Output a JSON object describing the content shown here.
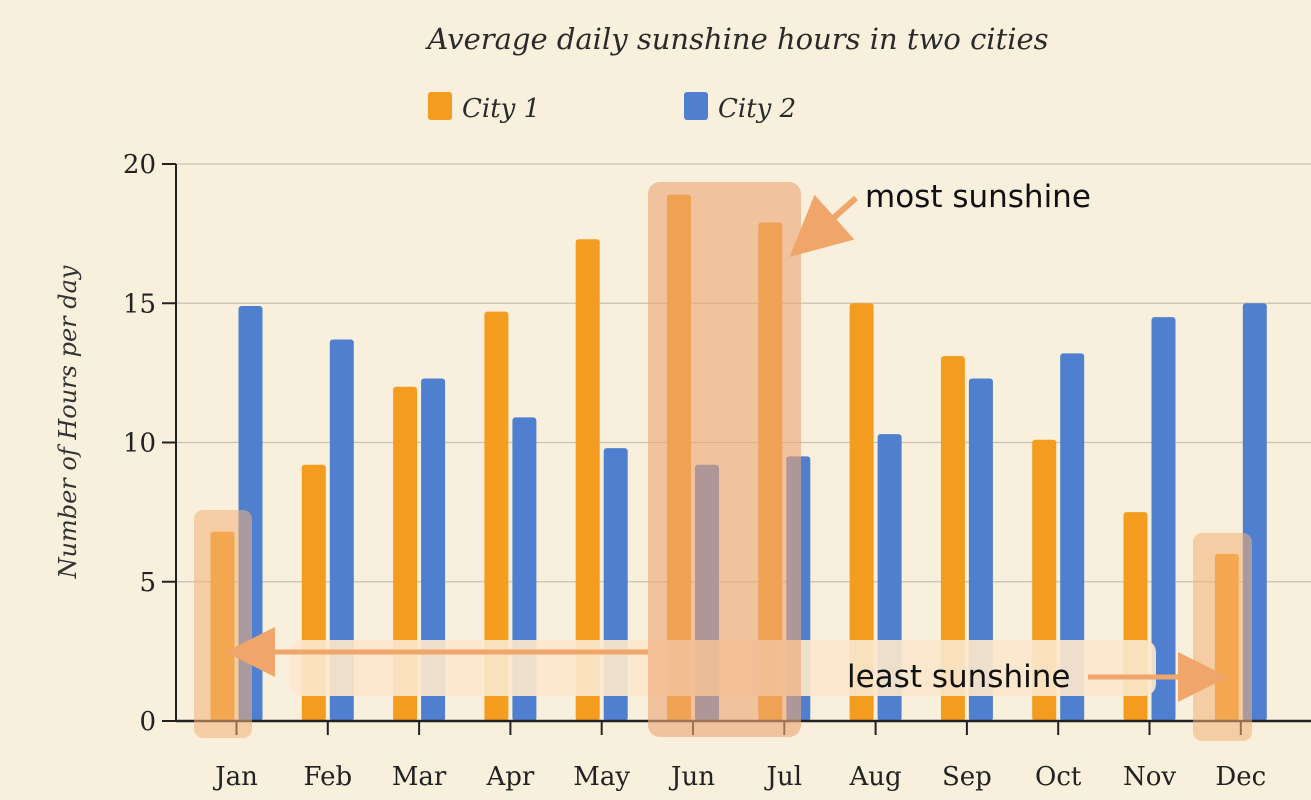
{
  "chart_data": {
    "type": "bar",
    "title": "Average daily sunshine hours in two cities",
    "xlabel": "",
    "ylabel": "Number of Hours per day",
    "categories": [
      "Jan",
      "Feb",
      "Mar",
      "Apr",
      "May",
      "Jun",
      "Jul",
      "Aug",
      "Sep",
      "Oct",
      "Nov",
      "Dec"
    ],
    "series": [
      {
        "name": "City 1",
        "color": "#f39c1f",
        "values": [
          6.8,
          9.2,
          12.0,
          14.7,
          17.3,
          18.9,
          17.9,
          15.0,
          13.1,
          10.1,
          7.5,
          6.0
        ]
      },
      {
        "name": "City 2",
        "color": "#4f7fce",
        "values": [
          14.9,
          13.7,
          12.3,
          10.9,
          9.8,
          9.2,
          9.5,
          10.3,
          12.3,
          13.2,
          14.5,
          15.0
        ]
      }
    ],
    "ylim": [
      0,
      20
    ],
    "yticks": [
      0,
      5,
      10,
      15,
      20
    ],
    "grid": true,
    "legend": "top-left",
    "annotations": [
      {
        "text": "most sunshine",
        "months": [
          "Jun",
          "Jul"
        ]
      },
      {
        "text": "least sunshine",
        "months": [
          "Jan",
          "Dec"
        ]
      }
    ]
  }
}
